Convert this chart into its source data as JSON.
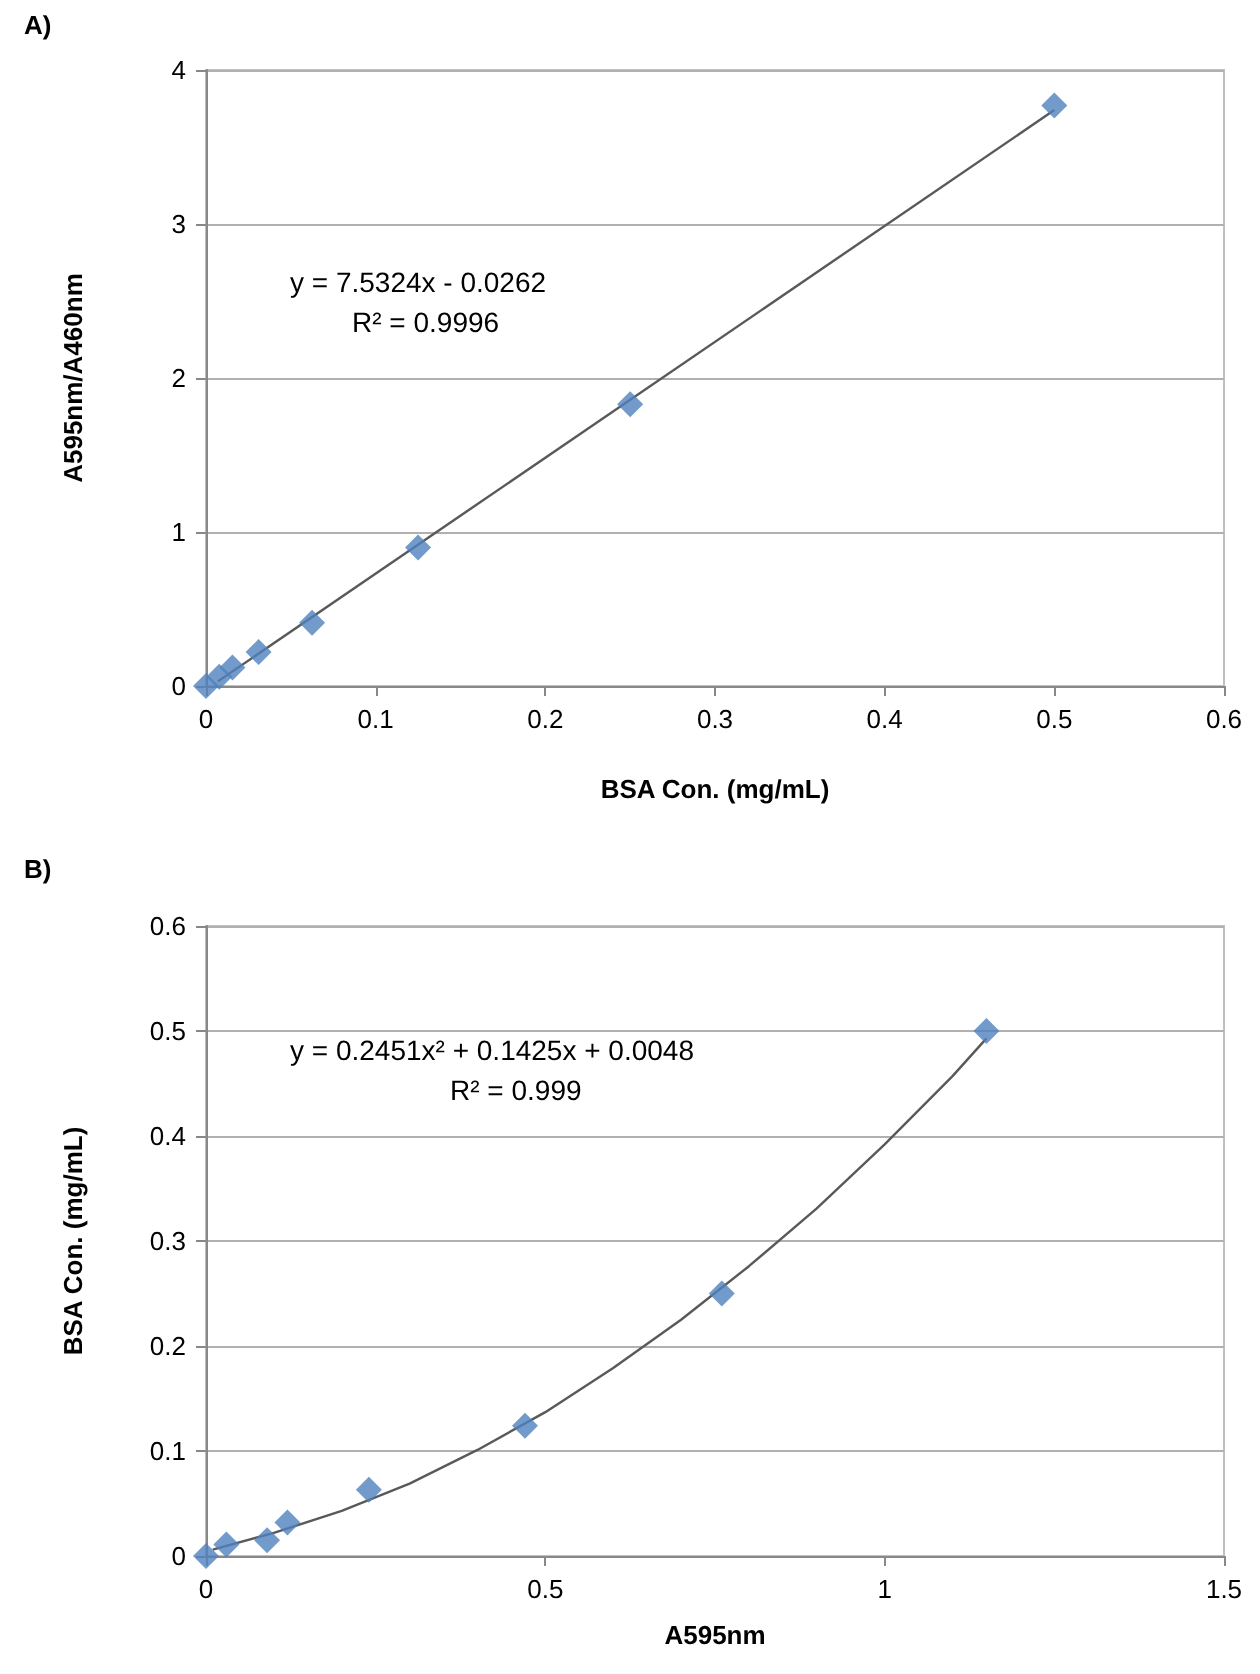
{
  "chart_data": [
    {
      "type": "scatter",
      "title": "A)",
      "xlabel": "BSA Con. (mg/mL)",
      "ylabel": "A595nm/A460nm",
      "xlim": [
        0,
        0.6
      ],
      "xticks": [
        0,
        0.1,
        0.2,
        0.3,
        0.4,
        0.5,
        0.6
      ],
      "ylim": [
        0,
        4
      ],
      "yticks": [
        0,
        1,
        2,
        3,
        4
      ],
      "grid": "y",
      "annotations": [
        "y = 7.5324x - 0.0262",
        "R² = 0.9996"
      ],
      "series": [
        {
          "marker": "diamond",
          "color": "#4f81bd",
          "x": [
            0,
            0.0078,
            0.0156,
            0.031,
            0.0625,
            0.125,
            0.25,
            0.5
          ],
          "values": [
            0,
            0.06,
            0.12,
            0.22,
            0.41,
            0.9,
            1.83,
            3.77
          ]
        },
        {
          "type": "line",
          "marker": "none",
          "color": "#595959",
          "x": [
            0.007,
            0.5
          ],
          "values": [
            0.03,
            3.74
          ]
        }
      ]
    },
    {
      "type": "scatter",
      "title": "B)",
      "xlabel": "A595nm",
      "ylabel": "BSA Con. (mg/mL)",
      "xlim": [
        0,
        1.5
      ],
      "xticks": [
        0,
        0.5,
        1,
        1.5
      ],
      "ylim": [
        0,
        0.6
      ],
      "yticks": [
        0,
        0.1,
        0.2,
        0.3,
        0.4,
        0.5,
        0.6
      ],
      "grid": "y",
      "annotations": [
        "y = 0.2451x² + 0.1425x + 0.0048",
        "R² = 0.999"
      ],
      "series": [
        {
          "marker": "diamond",
          "color": "#4f81bd",
          "x": [
            0,
            0.03,
            0.09,
            0.12,
            0.24,
            0.47,
            0.76,
            1.15
          ],
          "values": [
            0,
            0.011,
            0.015,
            0.032,
            0.063,
            0.124,
            0.25,
            0.5
          ]
        },
        {
          "type": "line",
          "marker": "none",
          "color": "#595959",
          "x": [
            0.01,
            0.1,
            0.2,
            0.3,
            0.4,
            0.5,
            0.6,
            0.7,
            0.8,
            0.9,
            1.0,
            1.1,
            1.15
          ],
          "values": [
            0.006,
            0.022,
            0.043,
            0.069,
            0.101,
            0.137,
            0.179,
            0.225,
            0.276,
            0.331,
            0.392,
            0.457,
            0.493
          ]
        }
      ]
    }
  ]
}
